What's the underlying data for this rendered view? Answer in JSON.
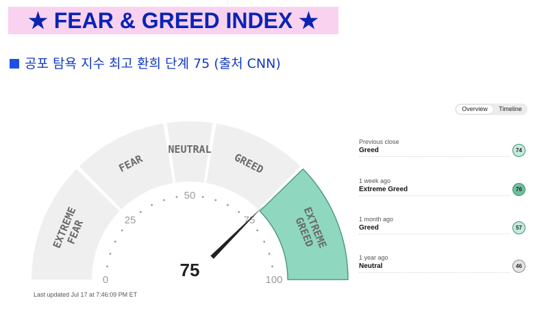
{
  "banner": {
    "title": "★ FEAR & GREED INDEX ★"
  },
  "subtitle": {
    "text": "공포 탐욕 지수 최고 환희 단계 75 (출처 CNN)"
  },
  "toggle": {
    "overview": "Overview",
    "timeline": "Timeline",
    "selected": "Overview"
  },
  "gauge": {
    "value": 75,
    "display_value": "75",
    "segments": [
      {
        "id": "extreme-fear",
        "lines": [
          "EXTREME",
          "FEAR"
        ],
        "from": 0,
        "to": 25
      },
      {
        "id": "fear",
        "lines": [
          "FEAR"
        ],
        "from": 25,
        "to": 45
      },
      {
        "id": "neutral",
        "lines": [
          "NEUTRAL"
        ],
        "from": 45,
        "to": 55
      },
      {
        "id": "greed",
        "lines": [
          "GREED"
        ],
        "from": 55,
        "to": 75
      },
      {
        "id": "extreme-greed",
        "lines": [
          "EXTREME",
          "GREED"
        ],
        "from": 75,
        "to": 100
      }
    ],
    "active_segment": "extreme-greed",
    "tick_labels": [
      "0",
      "25",
      "50",
      "75",
      "100"
    ],
    "colors": {
      "segment": "#efefef",
      "active": "#8fd8bf",
      "active_border": "#4f9a7c",
      "needle": "#222222"
    }
  },
  "last_updated": "Last updated Jul 17 at 7:46:09 PM ET",
  "history": [
    {
      "period": "Previous close",
      "rating": "Greed",
      "value": "74",
      "color": "#c6eadf"
    },
    {
      "period": "1 week ago",
      "rating": "Extreme Greed",
      "value": "76",
      "color": "#6fbf9d"
    },
    {
      "period": "1 month ago",
      "rating": "Greed",
      "value": "57",
      "color": "#c6eadf"
    },
    {
      "period": "1 year ago",
      "rating": "Neutral",
      "value": "46",
      "color": "#e6e6e6"
    }
  ]
}
